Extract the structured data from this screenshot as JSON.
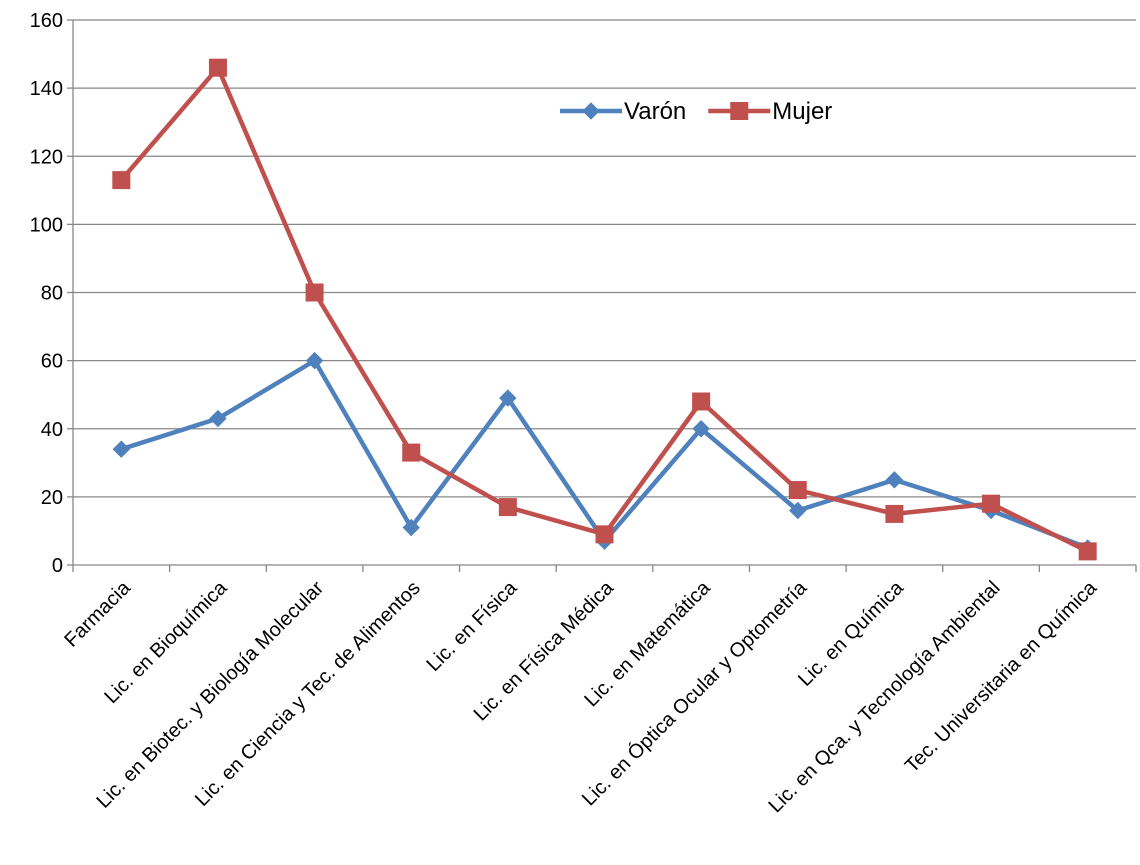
{
  "chart_data": {
    "type": "line",
    "title": "",
    "xlabel": "",
    "ylabel": "",
    "ylim": [
      0,
      160
    ],
    "yticks": [
      0,
      20,
      40,
      60,
      80,
      100,
      120,
      140,
      160
    ],
    "grid": true,
    "legend_position": "top-center",
    "categories": [
      "Farmacia",
      "Lic. en Bioquímica",
      "Lic. en Biotec. y Biología Molecular",
      "Lic. en Ciencia y Tec. de Alimentos",
      "Lic. en Física",
      "Lic. en Física Médica",
      "Lic. en Matemática",
      "Lic. en Óptica Ocular y Optometría",
      "Lic. en Química",
      "Lic. en Qca. y Tecnología Ambiental",
      "Tec. Universitaria en Química"
    ],
    "series": [
      {
        "name": "Varón",
        "color": "#4F81BD",
        "marker": "diamond",
        "values": [
          34,
          43,
          60,
          11,
          49,
          7,
          40,
          16,
          25,
          16,
          5
        ]
      },
      {
        "name": "Mujer",
        "color": "#C0504D",
        "marker": "square",
        "values": [
          113,
          146,
          80,
          33,
          17,
          9,
          48,
          22,
          15,
          18,
          4
        ]
      }
    ]
  }
}
